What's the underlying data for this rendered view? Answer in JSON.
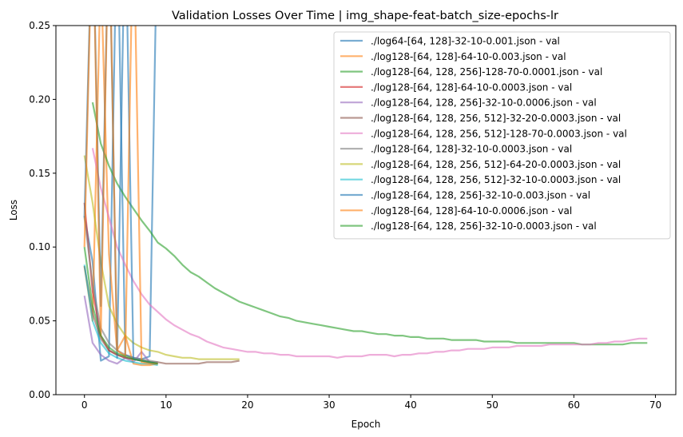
{
  "chart_data": {
    "type": "line",
    "title": "Validation Losses Over Time | img_shape-feat-batch_size-epochs-lr",
    "xlabel": "Epoch",
    "ylabel": "Loss",
    "xlim": [
      -3.5,
      72.5
    ],
    "ylim": [
      0,
      0.25
    ],
    "xticks": [
      0,
      10,
      20,
      30,
      40,
      50,
      60,
      70
    ],
    "xtick_labels": [
      "0",
      "10",
      "20",
      "30",
      "40",
      "50",
      "60",
      "70"
    ],
    "yticks": [
      0,
      0.05,
      0.1,
      0.15,
      0.2,
      0.25
    ],
    "ytick_labels": [
      "0.00",
      "0.05",
      "0.10",
      "0.15",
      "0.20",
      "0.25"
    ],
    "grid": false,
    "legend_position": "top-right",
    "series": [
      {
        "name": "./log64-[64, 128]-32-10-0.001.json - val",
        "color": "#1f77b4",
        "x": [
          0,
          1,
          2,
          3,
          4,
          5,
          6,
          7,
          8,
          9
        ],
        "y": [
          0.121,
          0.09,
          0.023,
          0.026,
          0.33,
          0.027,
          0.025,
          0.024,
          0.026,
          0.34
        ]
      },
      {
        "name": "./log128-[64, 128]-64-10-0.003.json - val",
        "color": "#ff7f0e",
        "x": [
          0,
          1,
          2,
          3,
          4,
          5,
          6,
          7,
          8,
          9
        ],
        "y": [
          0.087,
          0.05,
          0.29,
          0.095,
          0.03,
          0.04,
          0.021,
          0.02,
          0.02,
          0.021
        ]
      },
      {
        "name": "./log128-[64, 128, 256]-128-70-0.0001.json - val",
        "color": "#2ca02c",
        "x": [
          1,
          2,
          3,
          4,
          5,
          6,
          7,
          8,
          9,
          10,
          11,
          12,
          13,
          14,
          15,
          16,
          17,
          18,
          19,
          20,
          21,
          22,
          23,
          24,
          25,
          26,
          27,
          28,
          29,
          30,
          31,
          32,
          33,
          34,
          35,
          36,
          37,
          38,
          39,
          40,
          41,
          42,
          43,
          44,
          45,
          46,
          47,
          48,
          49,
          50,
          51,
          52,
          53,
          54,
          55,
          56,
          57,
          58,
          59,
          60,
          61,
          62,
          63,
          64,
          65,
          66,
          67,
          68,
          69
        ],
        "y": [
          0.198,
          0.17,
          0.155,
          0.143,
          0.134,
          0.126,
          0.118,
          0.111,
          0.103,
          0.099,
          0.094,
          0.088,
          0.083,
          0.08,
          0.076,
          0.072,
          0.069,
          0.066,
          0.063,
          0.061,
          0.059,
          0.057,
          0.055,
          0.053,
          0.052,
          0.05,
          0.049,
          0.048,
          0.047,
          0.046,
          0.045,
          0.044,
          0.043,
          0.043,
          0.042,
          0.041,
          0.041,
          0.04,
          0.04,
          0.039,
          0.039,
          0.038,
          0.038,
          0.038,
          0.037,
          0.037,
          0.037,
          0.037,
          0.036,
          0.036,
          0.036,
          0.036,
          0.035,
          0.035,
          0.035,
          0.035,
          0.035,
          0.035,
          0.035,
          0.035,
          0.034,
          0.034,
          0.034,
          0.034,
          0.034,
          0.034,
          0.035,
          0.035,
          0.035
        ]
      },
      {
        "name": "./log128-[64, 128]-64-10-0.0003.json - val",
        "color": "#d62728",
        "x": [
          0,
          1,
          2,
          3,
          4,
          5,
          6,
          7,
          8,
          9
        ],
        "y": [
          0.13,
          0.07,
          0.04,
          0.03,
          0.027,
          0.025,
          0.024,
          0.023,
          0.022,
          0.021
        ]
      },
      {
        "name": "./log128-[64, 128, 256]-32-10-0.0006.json - val",
        "color": "#9467bd",
        "x": [
          0,
          1,
          2,
          3,
          4,
          5,
          6,
          7,
          8,
          9
        ],
        "y": [
          0.067,
          0.035,
          0.027,
          0.023,
          0.021,
          0.025,
          0.022,
          0.029,
          0.022,
          0.021
        ]
      },
      {
        "name": "./log128-[64, 128, 256, 512]-32-20-0.0003.json - val",
        "color": "#8c564b",
        "x": [
          0,
          1,
          2,
          3,
          4,
          5,
          6,
          7,
          8,
          9,
          10,
          11,
          12,
          13,
          14,
          15,
          16,
          17,
          18,
          19
        ],
        "y": [
          0.087,
          0.055,
          0.038,
          0.03,
          0.027,
          0.025,
          0.024,
          0.023,
          0.022,
          0.022,
          0.021,
          0.021,
          0.021,
          0.021,
          0.021,
          0.022,
          0.022,
          0.022,
          0.022,
          0.023
        ]
      },
      {
        "name": "./log128-[64, 128, 256, 512]-128-70-0.0003.json - val",
        "color": "#e377c2",
        "x": [
          1,
          2,
          3,
          4,
          5,
          6,
          7,
          8,
          9,
          10,
          11,
          12,
          13,
          14,
          15,
          16,
          17,
          18,
          19,
          20,
          21,
          22,
          23,
          24,
          25,
          26,
          27,
          28,
          29,
          30,
          31,
          32,
          33,
          34,
          35,
          36,
          37,
          38,
          39,
          40,
          41,
          42,
          43,
          44,
          45,
          46,
          47,
          48,
          49,
          50,
          51,
          52,
          53,
          54,
          55,
          56,
          57,
          58,
          59,
          60,
          61,
          62,
          63,
          64,
          65,
          66,
          67,
          68,
          69
        ],
        "y": [
          0.167,
          0.14,
          0.12,
          0.1,
          0.088,
          0.077,
          0.068,
          0.061,
          0.056,
          0.051,
          0.047,
          0.044,
          0.041,
          0.039,
          0.036,
          0.034,
          0.032,
          0.031,
          0.03,
          0.029,
          0.029,
          0.028,
          0.028,
          0.027,
          0.027,
          0.026,
          0.026,
          0.026,
          0.026,
          0.026,
          0.025,
          0.026,
          0.026,
          0.026,
          0.027,
          0.027,
          0.027,
          0.026,
          0.027,
          0.027,
          0.028,
          0.028,
          0.029,
          0.029,
          0.03,
          0.03,
          0.031,
          0.031,
          0.031,
          0.032,
          0.032,
          0.032,
          0.033,
          0.033,
          0.033,
          0.033,
          0.034,
          0.034,
          0.034,
          0.034,
          0.034,
          0.034,
          0.035,
          0.035,
          0.036,
          0.036,
          0.037,
          0.038,
          0.038
        ]
      },
      {
        "name": "./log128-[64, 128]-32-10-0.0003.json - val",
        "color": "#7f7f7f",
        "x": [
          0,
          1,
          2,
          3,
          4,
          5,
          6,
          7,
          8,
          9
        ],
        "y": [
          0.12,
          0.075,
          0.045,
          0.035,
          0.03,
          0.027,
          0.025,
          0.024,
          0.023,
          0.022
        ]
      },
      {
        "name": "./log128-[64, 128, 256, 512]-64-20-0.0003.json - val",
        "color": "#bcbd22",
        "x": [
          0,
          1,
          2,
          3,
          4,
          5,
          6,
          7,
          8,
          9,
          10,
          11,
          12,
          13,
          14,
          15,
          16,
          17,
          18,
          19
        ],
        "y": [
          0.162,
          0.13,
          0.09,
          0.06,
          0.048,
          0.04,
          0.035,
          0.032,
          0.03,
          0.029,
          0.027,
          0.026,
          0.025,
          0.025,
          0.024,
          0.024,
          0.024,
          0.024,
          0.024,
          0.024
        ]
      },
      {
        "name": "./log128-[64, 128, 256, 512]-32-10-0.0003.json - val",
        "color": "#17becf",
        "x": [
          0,
          1,
          2,
          3,
          4,
          5,
          6,
          7,
          8,
          9
        ],
        "y": [
          0.088,
          0.05,
          0.035,
          0.028,
          0.025,
          0.023,
          0.022,
          0.021,
          0.021,
          0.02
        ]
      },
      {
        "name": "./log128-[64, 128, 256]-32-10-0.003.json - val",
        "color": "#1f77b4",
        "x": [
          0,
          1,
          2,
          3,
          4,
          5,
          6,
          7,
          8,
          9
        ],
        "y": [
          0.12,
          0.33,
          0.06,
          0.33,
          0.025,
          0.33,
          0.024,
          0.023,
          0.022,
          0.021
        ]
      },
      {
        "name": "./log128-[64, 128]-64-10-0.0006.json - val",
        "color": "#ff7f0e",
        "x": [
          0,
          1,
          2,
          3,
          4,
          5,
          6,
          7,
          8,
          9
        ],
        "y": [
          0.1,
          0.33,
          0.04,
          0.33,
          0.03,
          0.026,
          0.33,
          0.022,
          0.021,
          0.021
        ]
      },
      {
        "name": "./log128-[64, 128, 256]-32-10-0.0003.json - val",
        "color": "#2ca02c",
        "x": [
          0,
          1,
          2,
          3,
          4,
          5,
          6,
          7,
          8,
          9
        ],
        "y": [
          0.1,
          0.06,
          0.04,
          0.032,
          0.028,
          0.026,
          0.024,
          0.023,
          0.022,
          0.021
        ]
      }
    ]
  }
}
